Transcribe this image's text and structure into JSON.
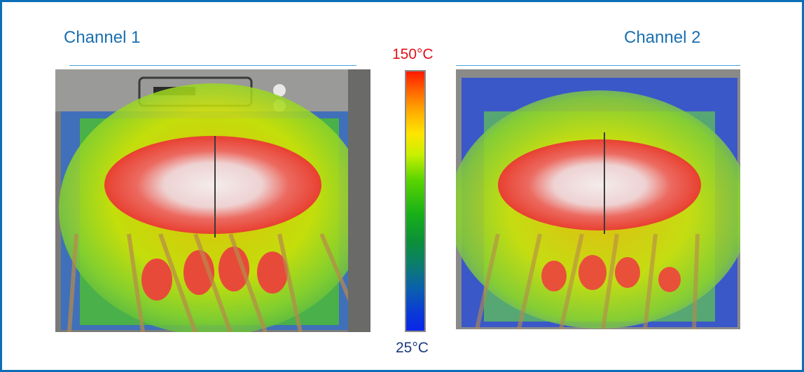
{
  "channels": [
    {
      "title": "Channel 1"
    },
    {
      "title": "Channel 2"
    }
  ],
  "scale": {
    "max_label": "150°C",
    "min_label": "25°C",
    "colors": [
      "#ff1a00",
      "#ff6a00",
      "#ffe500",
      "#59d400",
      "#0b8f3a",
      "#0b5fae",
      "#0a26e8"
    ]
  }
}
